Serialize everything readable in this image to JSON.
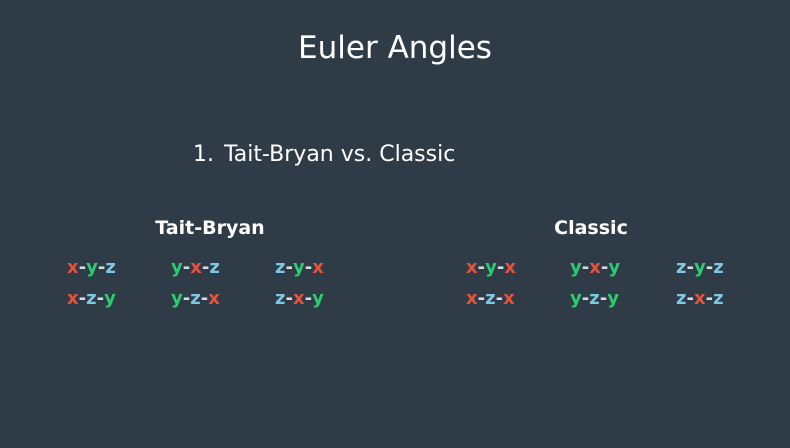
{
  "title": "Euler Angles",
  "list_item": {
    "number": "1.",
    "text": "Tait-Bryan vs. Classic"
  },
  "colors": {
    "background": "#2f3c48",
    "x": "#e8513a",
    "y": "#2ecc71",
    "z": "#7ec8e3"
  },
  "groups": [
    {
      "heading": "Tait-Bryan",
      "rows": [
        [
          "x-y-z",
          "y-x-z",
          "z-y-x"
        ],
        [
          "x-z-y",
          "y-z-x",
          "z-x-y"
        ]
      ]
    },
    {
      "heading": "Classic",
      "rows": [
        [
          "x-y-x",
          "y-x-y",
          "z-y-z"
        ],
        [
          "x-z-x",
          "y-z-y",
          "z-x-z"
        ]
      ]
    }
  ]
}
